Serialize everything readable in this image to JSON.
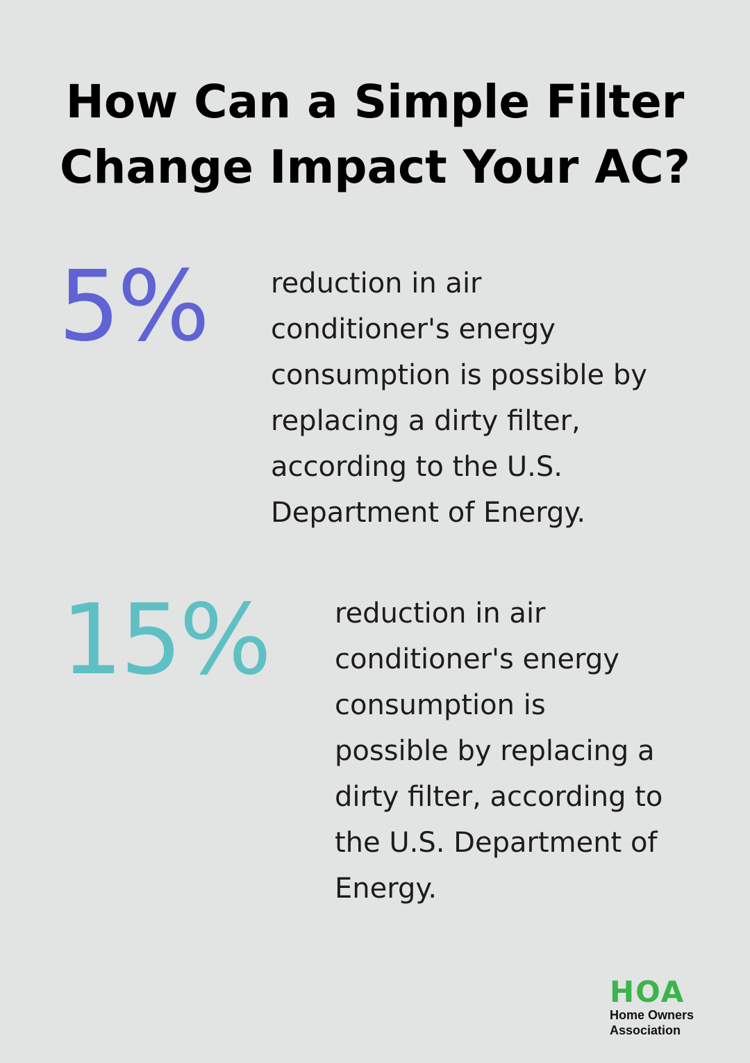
{
  "title": {
    "line1": "How Can a Simple Filter",
    "line2": "Change Impact Your AC?"
  },
  "stats": [
    {
      "value": "5%",
      "color": "#5f63d3",
      "description_lines": [
        "reduction in air",
        "conditioner's energy",
        "consumption is possible by",
        "replacing a dirty filter,",
        "according to the U.S.",
        "Department of Energy."
      ]
    },
    {
      "value": "15%",
      "color": "#5ec0c3",
      "description_lines": [
        "reduction in air",
        "conditioner's energy",
        "consumption is",
        "possible by replacing a",
        "dirty filter, according to",
        "the U.S. Department of",
        "Energy."
      ]
    }
  ],
  "logo": {
    "mark": "HOA",
    "mark_color": "#3bb54a",
    "line1": "Home Owners",
    "line2": "Association"
  },
  "colors": {
    "background": "#e2e3e3",
    "title": "#000000",
    "text": "#1c1c1c"
  }
}
